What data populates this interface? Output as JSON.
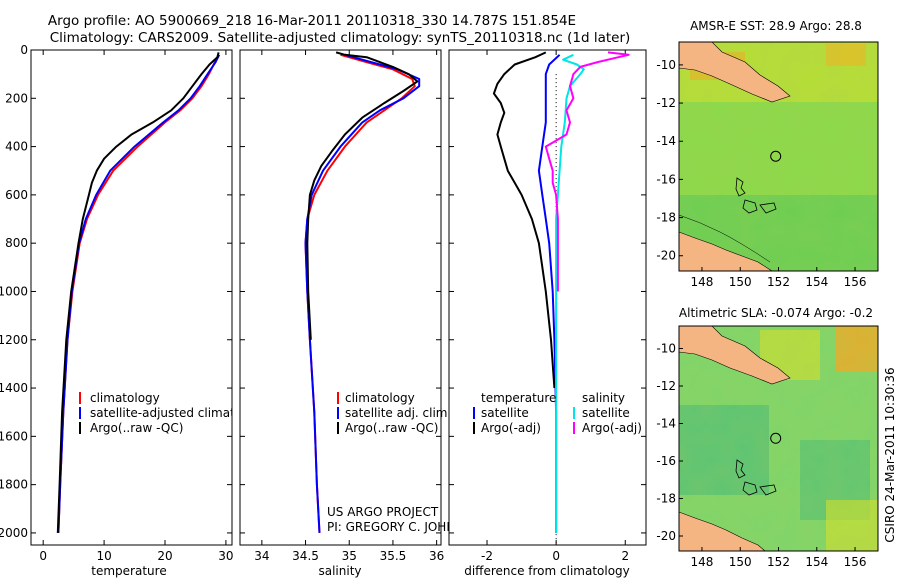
{
  "title": {
    "line1": "Argo profile: AO 5900669_218 16-Mar-2011 20110318_330 14.787S 151.854E",
    "line2": "Climatology: CARS2009. Satellite-adjusted climatology: synTS_20110318.nc (1d later)"
  },
  "credits": {
    "project": "US ARGO PROJECT",
    "pi": "PI: GREGORY C. JOHNSON",
    "stamp": "CSIRO 24-Mar-2011 10:30:36"
  },
  "colors": {
    "climatology": "#ff0000",
    "satellite": "#0000ff",
    "argo": "#000000",
    "sal_satellite": "#00e5e5",
    "sal_argo": "#ff00ff",
    "land": "#f5b583",
    "ocean_mid": "#7ed957",
    "ocean_dark": "#2fae63",
    "ocean_warm": "#e9e21d",
    "ocean_hot": "#f5a623"
  },
  "chart_data": [
    {
      "type": "line",
      "id": "temperature",
      "xlabel": "temperature",
      "ylabel": "",
      "xlim": [
        -2,
        31
      ],
      "ylim": [
        2050,
        0
      ],
      "xticks": [
        0,
        10,
        20,
        30
      ],
      "yticks": [
        0,
        200,
        400,
        600,
        800,
        1000,
        1200,
        1400,
        1600,
        1800,
        2000
      ],
      "legend": [
        "climatology",
        "satellite-adjusted climatology",
        "Argo(..raw -QC)"
      ],
      "series": [
        {
          "name": "climatology",
          "color": "#ff0000",
          "depth": [
            20,
            50,
            100,
            150,
            200,
            250,
            300,
            400,
            500,
            600,
            700,
            800,
            1000,
            1200,
            1500,
            1800,
            2000
          ],
          "values": [
            28.8,
            28.2,
            27.2,
            26.0,
            24.5,
            22.5,
            20.0,
            15.5,
            11.5,
            9.0,
            7.2,
            6.0,
            4.8,
            4.0,
            3.3,
            2.8,
            2.5
          ]
        },
        {
          "name": "satellite-adjusted climatology",
          "color": "#0000ff",
          "depth": [
            20,
            50,
            100,
            150,
            200,
            250,
            300,
            400,
            500,
            600,
            700,
            800,
            1000,
            1200,
            1500,
            1800,
            2000
          ],
          "values": [
            28.9,
            28.3,
            27.0,
            25.7,
            24.2,
            22.2,
            19.7,
            15.0,
            11.0,
            8.7,
            7.0,
            5.9,
            4.7,
            4.0,
            3.3,
            2.8,
            2.5
          ]
        },
        {
          "name": "Argo(..raw -QC)",
          "color": "#000000",
          "depth": [
            10,
            30,
            60,
            100,
            150,
            200,
            250,
            300,
            350,
            400,
            450,
            500,
            550,
            600,
            700,
            800,
            1000,
            1200,
            1500,
            1800,
            2000
          ],
          "values": [
            28.8,
            28.6,
            27.3,
            26.0,
            24.5,
            23.0,
            21.0,
            18.0,
            14.5,
            12.0,
            10.0,
            8.8,
            8.0,
            7.5,
            6.5,
            5.8,
            4.6,
            3.8,
            3.1,
            2.7,
            2.4
          ]
        }
      ]
    },
    {
      "type": "line",
      "id": "salinity",
      "xlabel": "salinity",
      "ylabel": "",
      "xlim": [
        33.75,
        36.05
      ],
      "ylim": [
        2050,
        0
      ],
      "xticks": [
        34,
        34.5,
        35,
        35.5,
        36
      ],
      "yticks": [
        0,
        200,
        400,
        600,
        800,
        1000,
        1200,
        1400,
        1600,
        1800,
        2000
      ],
      "legend": [
        "climatology",
        "satellite adj. clim.",
        "Argo(..raw -QC)"
      ],
      "series": [
        {
          "name": "climatology",
          "color": "#ff0000",
          "depth": [
            20,
            50,
            80,
            120,
            150,
            200,
            250,
            300,
            400,
            500,
            600,
            700,
            800,
            1000,
            1200,
            1500,
            1800,
            2000
          ],
          "values": [
            34.9,
            35.2,
            35.5,
            35.72,
            35.75,
            35.6,
            35.4,
            35.2,
            34.95,
            34.75,
            34.6,
            34.52,
            34.5,
            34.52,
            34.55,
            34.6,
            34.63,
            34.66
          ]
        },
        {
          "name": "satellite adj. clim.",
          "color": "#0000ff",
          "depth": [
            20,
            50,
            80,
            120,
            150,
            200,
            250,
            300,
            400,
            500,
            600,
            700,
            800,
            1000,
            1200,
            1500,
            1800,
            2000
          ],
          "values": [
            34.95,
            35.25,
            35.55,
            35.8,
            35.8,
            35.62,
            35.35,
            35.15,
            34.9,
            34.7,
            34.57,
            34.52,
            34.5,
            34.52,
            34.55,
            34.6,
            34.63,
            34.66
          ]
        },
        {
          "name": "Argo(..raw -QC)",
          "color": "#000000",
          "depth": [
            10,
            20,
            30,
            50,
            70,
            100,
            130,
            170,
            220,
            280,
            350,
            420,
            480,
            540,
            600,
            700,
            800,
            1000,
            1200
          ],
          "values": [
            34.85,
            34.95,
            35.2,
            35.35,
            35.5,
            35.68,
            35.78,
            35.62,
            35.4,
            35.15,
            34.95,
            34.8,
            34.68,
            34.6,
            34.55,
            34.53,
            34.52,
            34.53,
            34.56
          ]
        }
      ]
    },
    {
      "type": "line",
      "id": "difference",
      "xlabel": "difference from climatology",
      "ylabel": "",
      "xlim": [
        -3.1,
        2.6
      ],
      "ylim": [
        2050,
        0
      ],
      "xticks": [
        -2,
        0,
        2
      ],
      "yticks": [
        0,
        200,
        400,
        600,
        800,
        1000,
        1200,
        1400,
        1600,
        1800,
        2000
      ],
      "legend_left": {
        "title": "temperature",
        "items": [
          "satellite",
          "Argo(-adj)"
        ]
      },
      "legend_right": {
        "title": "salinity",
        "items": [
          "satellite",
          "Argo(-adj)"
        ]
      },
      "series": [
        {
          "name": "temperature satellite",
          "color": "#0000ff",
          "depth": [
            20,
            60,
            100,
            150,
            200,
            300,
            400,
            500,
            600,
            700,
            800,
            1000,
            1200,
            1500,
            1800,
            2000
          ],
          "values": [
            0.1,
            -0.2,
            -0.3,
            -0.3,
            -0.3,
            -0.3,
            -0.4,
            -0.5,
            -0.4,
            -0.3,
            -0.2,
            -0.1,
            -0.05,
            0.0,
            0.0,
            0.0
          ]
        },
        {
          "name": "temperature Argo(-adj)",
          "color": "#000000",
          "depth": [
            10,
            30,
            60,
            100,
            140,
            180,
            220,
            260,
            300,
            350,
            400,
            450,
            500,
            550,
            600,
            700,
            800,
            1000,
            1200,
            1400
          ],
          "values": [
            -0.3,
            -0.6,
            -1.2,
            -1.5,
            -1.7,
            -1.8,
            -1.6,
            -1.5,
            -1.6,
            -1.7,
            -1.6,
            -1.5,
            -1.4,
            -1.2,
            -1.0,
            -0.7,
            -0.5,
            -0.3,
            -0.15,
            -0.05
          ]
        },
        {
          "name": "salinity satellite",
          "color": "#00e5e5",
          "depth": [
            20,
            40,
            60,
            80,
            100,
            150,
            200,
            300,
            400,
            500,
            600,
            700,
            800,
            1000,
            1200,
            1500,
            2000
          ],
          "values": [
            0.5,
            0.2,
            0.6,
            0.8,
            0.7,
            0.4,
            0.3,
            0.25,
            0.15,
            0.1,
            0.05,
            0.0,
            0.0,
            0.0,
            0.0,
            0.0,
            0.0
          ]
        },
        {
          "name": "salinity Argo(-adj)",
          "color": "#ff00ff",
          "depth": [
            10,
            20,
            30,
            50,
            70,
            100,
            150,
            200,
            250,
            300,
            350,
            400,
            450,
            500,
            550,
            600,
            700,
            800,
            1000
          ],
          "values": [
            1.5,
            2.1,
            1.8,
            1.2,
            0.7,
            0.5,
            0.4,
            0.5,
            0.3,
            0.4,
            0.3,
            -0.3,
            -0.2,
            -0.1,
            -0.1,
            0.0,
            0.05,
            0.05,
            0.05
          ]
        }
      ]
    },
    {
      "type": "heatmap",
      "id": "sst-map",
      "title": "AMSR-E SST: 28.9 Argo: 28.8",
      "xlim": [
        146.8,
        157.2
      ],
      "ylim": [
        -20.8,
        -8.8
      ],
      "xticks": [
        148,
        150,
        152,
        154,
        156
      ],
      "yticks": [
        -10,
        -12,
        -14,
        -16,
        -18,
        -20
      ],
      "marker": {
        "lon": 151.854,
        "lat": -14.787
      }
    },
    {
      "type": "heatmap",
      "id": "sla-map",
      "title": "Altimetric SLA: -0.074 Argo: -0.2",
      "xlim": [
        146.8,
        157.2
      ],
      "ylim": [
        -20.8,
        -8.8
      ],
      "xticks": [
        148,
        150,
        152,
        154,
        156
      ],
      "yticks": [
        -10,
        -12,
        -14,
        -16,
        -18,
        -20
      ],
      "marker": {
        "lon": 151.854,
        "lat": -14.787
      }
    }
  ]
}
